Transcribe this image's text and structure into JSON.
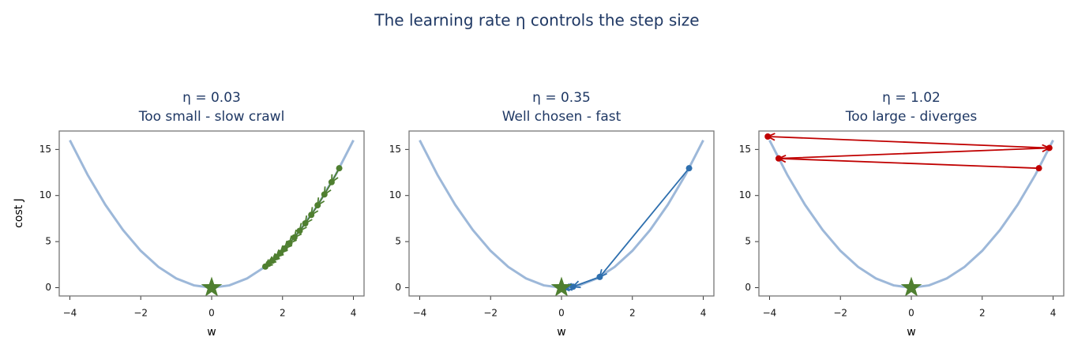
{
  "title": "The learning rate η controls the step size",
  "chart_data": [
    {
      "type": "line",
      "title": "η = 0.03",
      "subtitle": "Too small - slow crawl",
      "xlabel": "w",
      "ylabel": "cost J",
      "xlim": [
        -4.3,
        4.3
      ],
      "ylim": [
        -0.9,
        17
      ],
      "xticks": [
        {
          "value": -4,
          "label": "−4"
        },
        {
          "value": -2,
          "label": "−2"
        },
        0,
        2,
        4
      ],
      "yticks": [
        0,
        5,
        10,
        15
      ],
      "curve": {
        "color": "#9db8d9",
        "x": [
          -4,
          -3.5,
          -3,
          -2.5,
          -2,
          -1.5,
          -1,
          -0.5,
          0,
          0.5,
          1,
          1.5,
          2,
          2.5,
          3,
          3.5,
          4
        ],
        "y": [
          16,
          12.25,
          9,
          6.25,
          4,
          2.25,
          1,
          0.25,
          0,
          0.25,
          1,
          2.25,
          4,
          6.25,
          9,
          12.25,
          16
        ]
      },
      "path": {
        "color": "#4f7f30",
        "x": [
          3.6,
          3.384,
          3.181,
          2.99,
          2.811,
          2.642,
          2.484,
          2.335,
          2.195,
          2.063,
          1.939,
          1.823,
          1.713,
          1.611,
          1.514
        ],
        "y": [
          12.96,
          11.45,
          10.12,
          8.94,
          7.9,
          6.98,
          6.17,
          5.45,
          4.82,
          4.26,
          3.76,
          3.32,
          2.93,
          2.6,
          2.29
        ]
      },
      "minimum": {
        "color": "#4f7f30",
        "x": 0,
        "y": 0
      }
    },
    {
      "type": "line",
      "title": "η = 0.35",
      "subtitle": "Well chosen - fast",
      "xlabel": "w",
      "xlim": [
        -4.3,
        4.3
      ],
      "ylim": [
        -0.9,
        17
      ],
      "xticks": [
        {
          "value": -4,
          "label": "−4"
        },
        {
          "value": -2,
          "label": "−2"
        },
        0,
        2,
        4
      ],
      "yticks": [
        0,
        5,
        10,
        15
      ],
      "curve": {
        "color": "#9db8d9",
        "x": [
          -4,
          -3.5,
          -3,
          -2.5,
          -2,
          -1.5,
          -1,
          -0.5,
          0,
          0.5,
          1,
          1.5,
          2,
          2.5,
          3,
          3.5,
          4
        ],
        "y": [
          16,
          12.25,
          9,
          6.25,
          4,
          2.25,
          1,
          0.25,
          0,
          0.25,
          1,
          2.25,
          4,
          6.25,
          9,
          12.25,
          16
        ]
      },
      "path": {
        "color": "#2e6fae",
        "x": [
          3.6,
          1.08,
          0.324,
          0.097,
          0.029
        ],
        "y": [
          12.96,
          1.166,
          0.105,
          0.0094,
          0.0008
        ]
      },
      "minimum": {
        "color": "#4f7f30",
        "x": 0,
        "y": 0
      }
    },
    {
      "type": "line",
      "title": "η = 1.02",
      "subtitle": "Too large - diverges",
      "xlabel": "w",
      "xlim": [
        -4.3,
        4.3
      ],
      "ylim": [
        -0.9,
        17
      ],
      "xticks": [
        {
          "value": -4,
          "label": "−4"
        },
        {
          "value": -2,
          "label": "−2"
        },
        0,
        2,
        4
      ],
      "yticks": [
        0,
        5,
        10,
        15
      ],
      "curve": {
        "color": "#9db8d9",
        "x": [
          -4,
          -3.5,
          -3,
          -2.5,
          -2,
          -1.5,
          -1,
          -0.5,
          0,
          0.5,
          1,
          1.5,
          2,
          2.5,
          3,
          3.5,
          4
        ],
        "y": [
          16,
          12.25,
          9,
          6.25,
          4,
          2.25,
          1,
          0.25,
          0,
          0.25,
          1,
          2.25,
          4,
          6.25,
          9,
          12.25,
          16
        ]
      },
      "path": {
        "color": "#c00000",
        "x": [
          3.6,
          -3.744,
          3.894,
          -4.05
        ],
        "y": [
          12.96,
          14.02,
          15.16,
          16.4
        ]
      },
      "minimum": {
        "color": "#4f7f30",
        "x": 0,
        "y": 0
      }
    }
  ]
}
